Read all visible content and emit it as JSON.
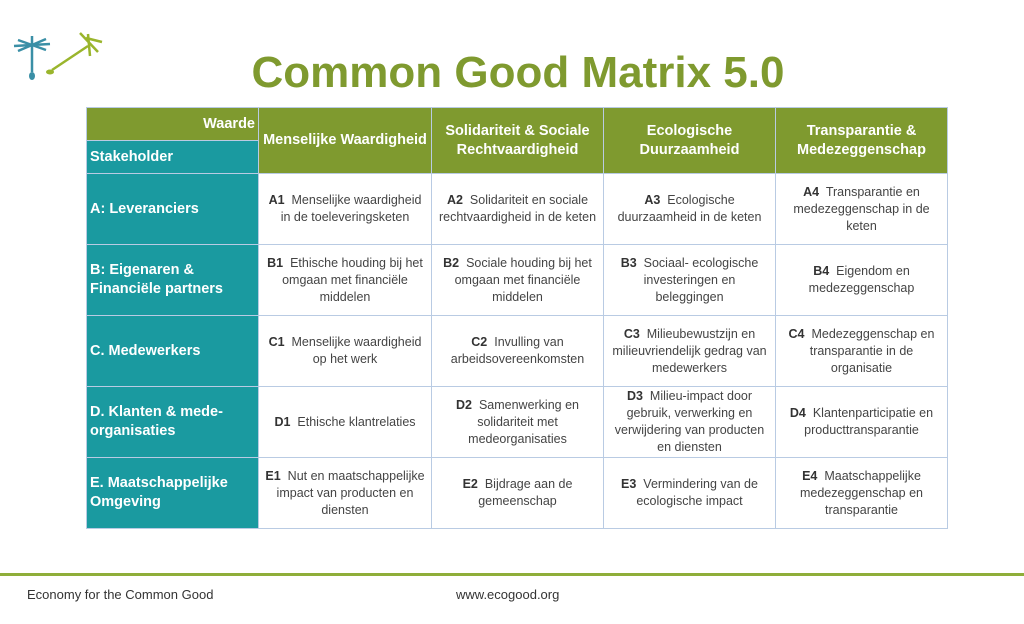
{
  "title": "Common Good Matrix 5.0",
  "header": {
    "waarde": "Waarde",
    "stakeholder": "Stakeholder",
    "values": [
      "Menselijke Waardigheid",
      "Solidariteit & Sociale Rechtvaardigheid",
      "Ecologische Duurzaamheid",
      "Transparantie & Medezeggenschap"
    ]
  },
  "rows": [
    {
      "stakeholder": "A: Leveranciers",
      "cells": [
        {
          "code": "A1",
          "text": "Menselijke waardigheid in de toeleveringsketen"
        },
        {
          "code": "A2",
          "text": "Solidariteit en sociale rechtvaardigheid in de keten"
        },
        {
          "code": "A3",
          "text": "Ecologische duurzaamheid in de keten"
        },
        {
          "code": "A4",
          "text": "Transparantie en medezeggenschap in de keten"
        }
      ]
    },
    {
      "stakeholder": "B: Eigenaren & Financiële partners",
      "cells": [
        {
          "code": "B1",
          "text": "Ethische houding bij het omgaan met financiële middelen"
        },
        {
          "code": "B2",
          "text": "Sociale houding bij het omgaan met financiële middelen"
        },
        {
          "code": "B3",
          "text": "Sociaal- ecologische investeringen en beleggingen"
        },
        {
          "code": "B4",
          "text": "Eigendom en medezeggenschap"
        }
      ]
    },
    {
      "stakeholder": "C. Medewerkers",
      "cells": [
        {
          "code": "C1",
          "text": "Menselijke waardigheid op het werk"
        },
        {
          "code": "C2",
          "text": "Invulling van arbeidsovereenkomsten"
        },
        {
          "code": "C3",
          "text": "Milieubewustzijn en milieuvriendelijk gedrag van medewerkers"
        },
        {
          "code": "C4",
          "text": "Medezeggenschap en transparantie in de organisatie"
        }
      ]
    },
    {
      "stakeholder": "D. Klanten & mede-organisaties",
      "cells": [
        {
          "code": "D1",
          "text": "Ethische klantrelaties"
        },
        {
          "code": "D2",
          "text": "Samenwerking en solidariteit met medeorganisaties"
        },
        {
          "code": "D3",
          "text": "Milieu-impact door gebruik, verwerking en verwijdering van producten en diensten"
        },
        {
          "code": "D4",
          "text": "Klantenparticipatie en producttransparantie"
        }
      ]
    },
    {
      "stakeholder": "E. Maatschappelijke Omgeving",
      "cells": [
        {
          "code": "E1",
          "text": "Nut en maatschappelijke impact van producten en diensten"
        },
        {
          "code": "E2",
          "text": "Bijdrage aan de gemeenschap"
        },
        {
          "code": "E3",
          "text": "Vermindering van de ecologische impact"
        },
        {
          "code": "E4",
          "text": "Maatschappelijke medezeggenschap en transparantie"
        }
      ]
    }
  ],
  "footer": {
    "left": "Economy for the Common Good",
    "center": "www.ecogood.org"
  },
  "colors": {
    "green": "#7f9a2f",
    "teal": "#1a9aa0"
  }
}
